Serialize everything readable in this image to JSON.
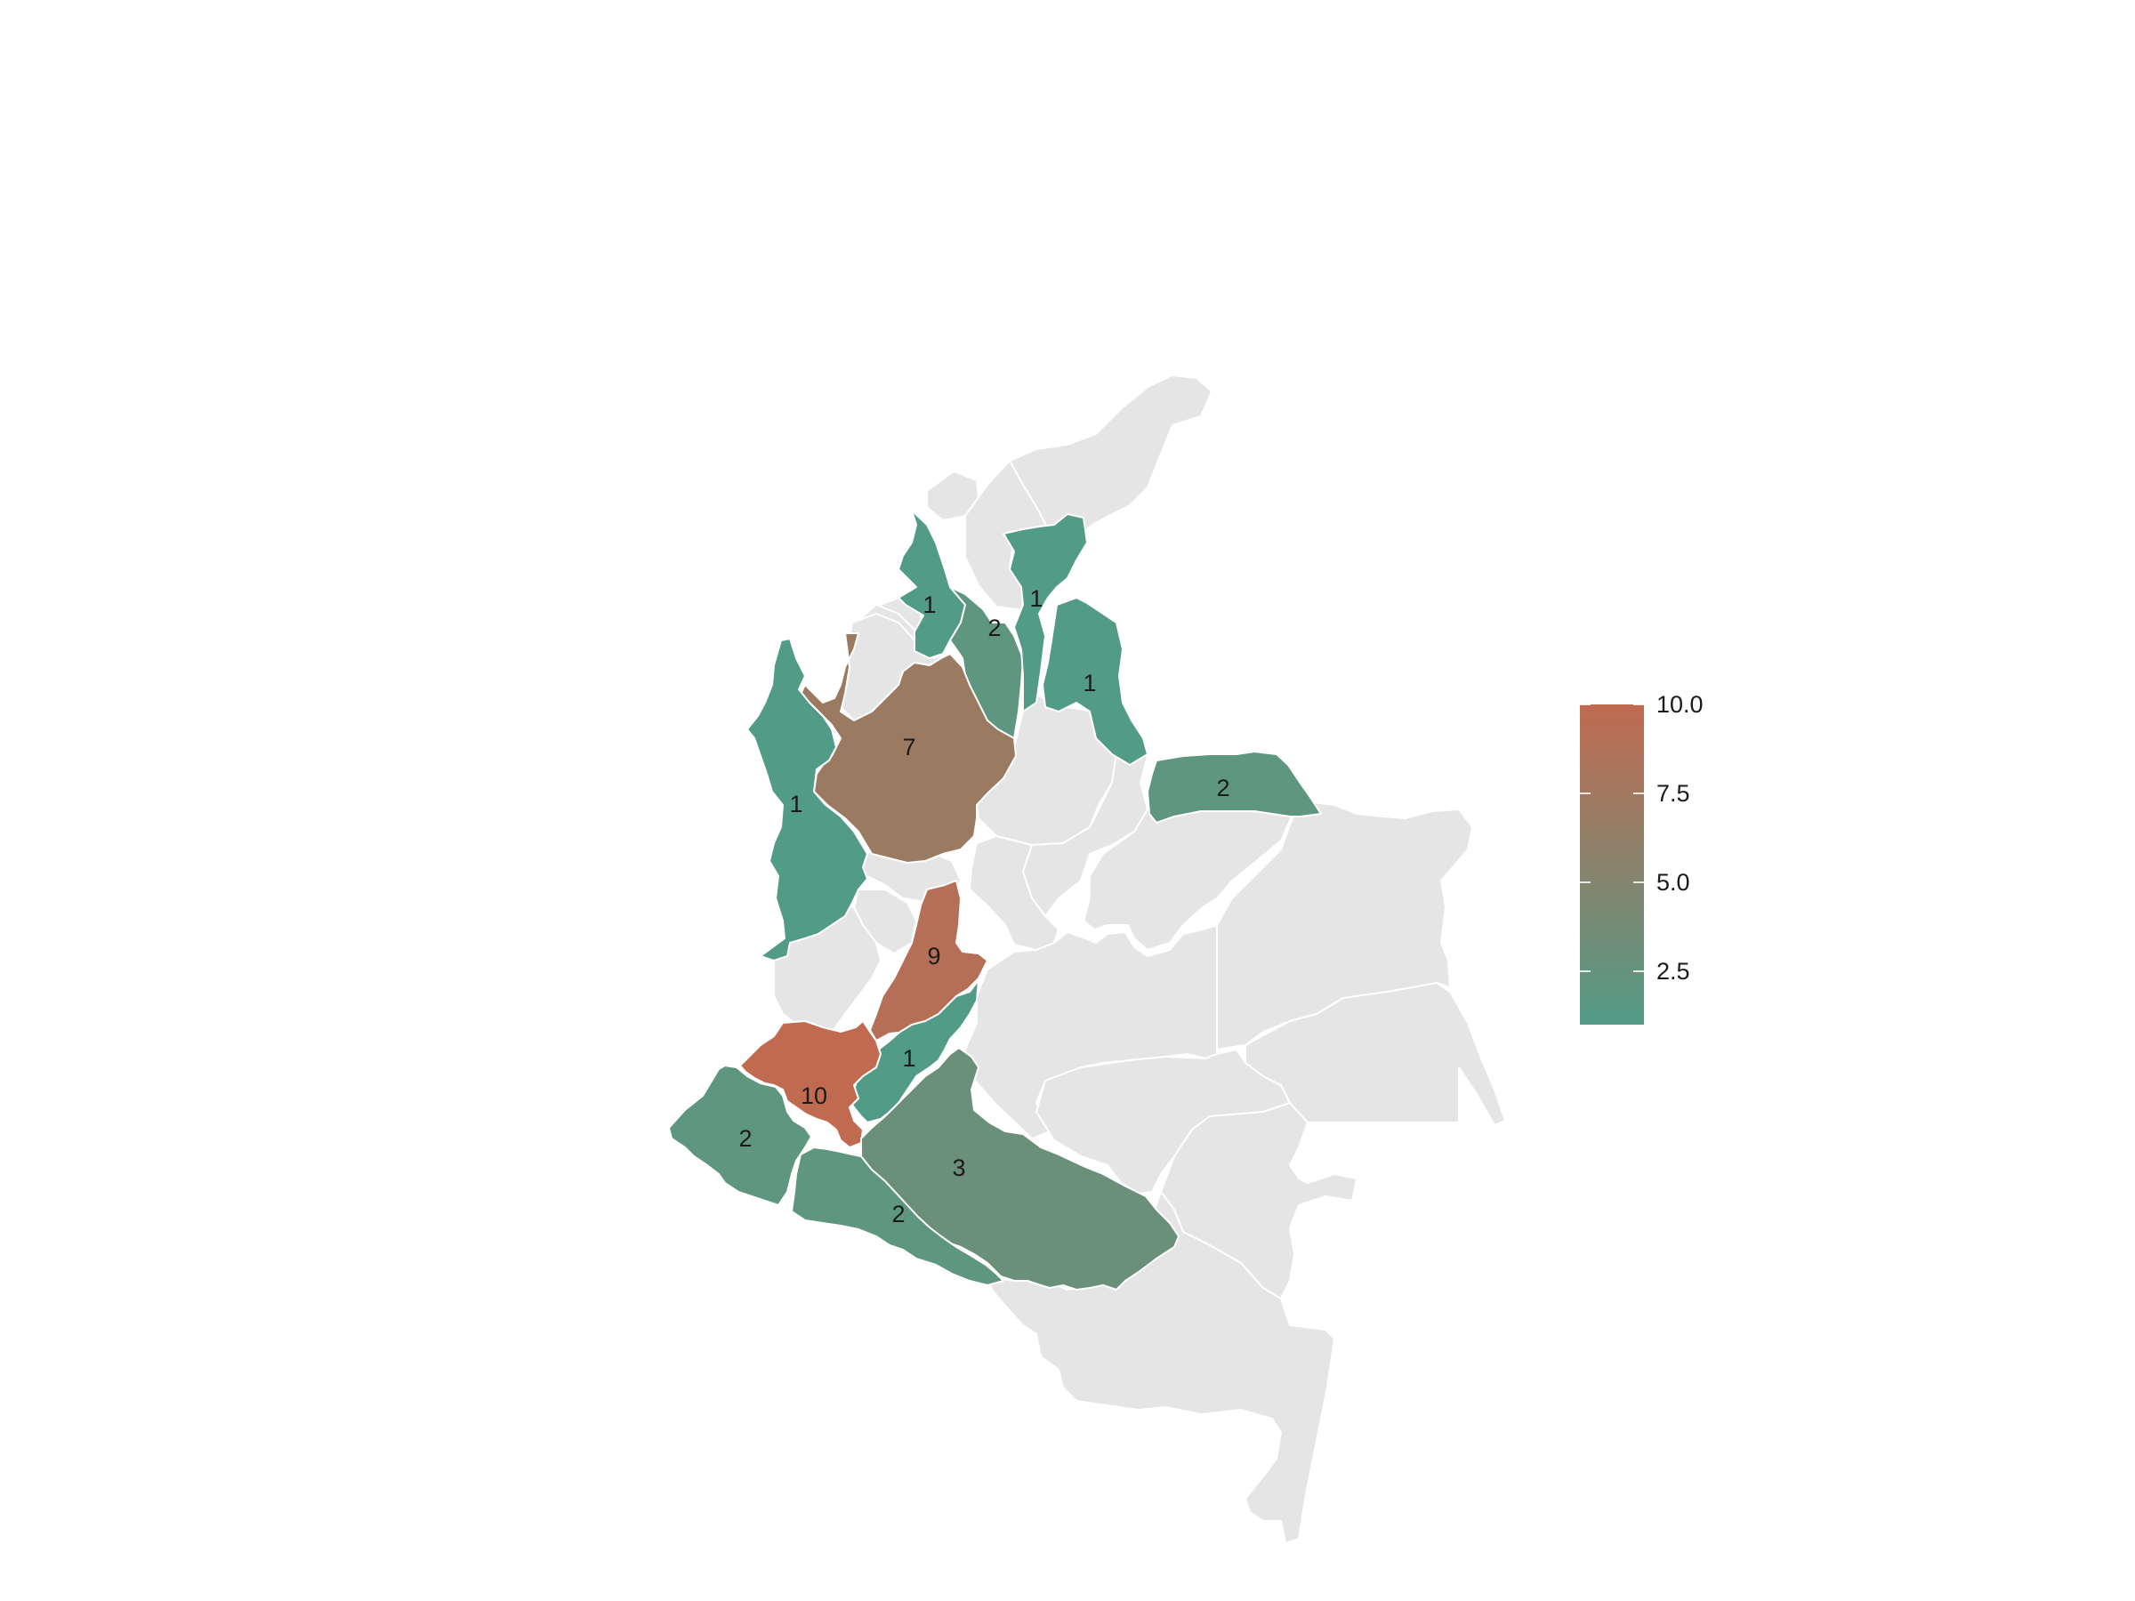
{
  "colors": {
    "low": "#529b86",
    "high": "#c06a50",
    "no_data": "#e5e5e5",
    "border": "#ffffff"
  },
  "chart_data": {
    "type": "choropleth",
    "title": "",
    "legend": {
      "placement": "right",
      "min": 1,
      "max": 10,
      "ticks": [
        {
          "value": 2.5,
          "label": "2.5"
        },
        {
          "value": 5.0,
          "label": "5.0"
        },
        {
          "value": 7.5,
          "label": "7.5"
        },
        {
          "value": 10.0,
          "label": "10.0"
        }
      ]
    },
    "regions": [
      {
        "id": "cordoba",
        "value": 1,
        "label": "1"
      },
      {
        "id": "sucre-bolivar",
        "value": 2,
        "label": "2"
      },
      {
        "id": "cesar",
        "value": 1,
        "label": "1"
      },
      {
        "id": "norte-santander",
        "value": 1,
        "label": "1"
      },
      {
        "id": "antioquia",
        "value": 7,
        "label": "7"
      },
      {
        "id": "choco",
        "value": 1,
        "label": "1"
      },
      {
        "id": "arauca",
        "value": 2,
        "label": "2"
      },
      {
        "id": "tolima",
        "value": 9,
        "label": "9"
      },
      {
        "id": "huila",
        "value": 1,
        "label": "1"
      },
      {
        "id": "cauca",
        "value": 10,
        "label": "10"
      },
      {
        "id": "narino",
        "value": 2,
        "label": "2"
      },
      {
        "id": "caqueta",
        "value": 3,
        "label": "3"
      },
      {
        "id": "putumayo",
        "value": 2,
        "label": "2"
      }
    ]
  }
}
